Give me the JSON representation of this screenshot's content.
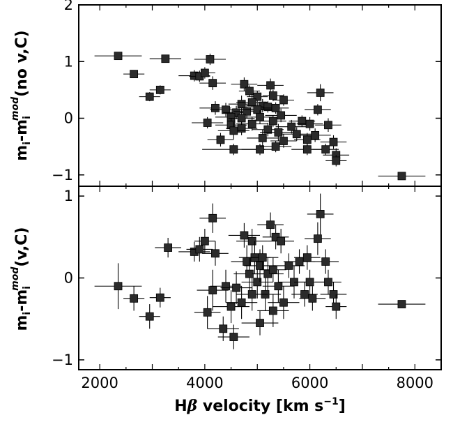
{
  "chart_data": [
    {
      "type": "scatter",
      "ylabel": "m_i-m_i^mod(no v,C)",
      "ylabel_parts": {
        "main": "m",
        "sub1": "i",
        "dash": "-m",
        "sub2": "i",
        "sup": "mod",
        "suffix": "(no v,C)"
      },
      "xlim": [
        1600,
        8500
      ],
      "ylim": [
        -1.2,
        2.0
      ],
      "y_ticks": [
        {
          "value": 2,
          "label": "2"
        },
        {
          "value": 1,
          "label": "1"
        },
        {
          "value": 0,
          "label": "0"
        },
        {
          "value": -1,
          "label": "−1"
        }
      ],
      "points": [
        {
          "x": 2350,
          "y": 1.1,
          "xe": 450,
          "ye": 0
        },
        {
          "x": 2650,
          "y": 0.78,
          "xe": 200,
          "ye": 0
        },
        {
          "x": 3250,
          "y": 1.05,
          "xe": 300,
          "ye": 0
        },
        {
          "x": 4100,
          "y": 1.04,
          "xe": 300,
          "ye": 0.1
        },
        {
          "x": 3800,
          "y": 0.75,
          "xe": 300,
          "ye": 0.1
        },
        {
          "x": 3900,
          "y": 0.74,
          "xe": 200,
          "ye": 0.1
        },
        {
          "x": 4000,
          "y": 0.8,
          "xe": 200,
          "ye": 0.1
        },
        {
          "x": 4150,
          "y": 0.62,
          "xe": 250,
          "ye": 0.12
        },
        {
          "x": 3150,
          "y": 0.5,
          "xe": 200,
          "ye": 0.08
        },
        {
          "x": 2950,
          "y": 0.38,
          "xe": 200,
          "ye": 0.08
        },
        {
          "x": 4750,
          "y": 0.6,
          "xe": 250,
          "ye": 0.12
        },
        {
          "x": 5250,
          "y": 0.58,
          "xe": 250,
          "ye": 0.12
        },
        {
          "x": 4850,
          "y": 0.48,
          "xe": 200,
          "ye": 0.1
        },
        {
          "x": 6200,
          "y": 0.45,
          "xe": 250,
          "ye": 0.15
        },
        {
          "x": 5300,
          "y": 0.4,
          "xe": 200,
          "ye": 0.1
        },
        {
          "x": 5000,
          "y": 0.38,
          "xe": 200,
          "ye": 0.1
        },
        {
          "x": 5500,
          "y": 0.32,
          "xe": 200,
          "ye": 0.1
        },
        {
          "x": 4700,
          "y": 0.25,
          "xe": 250,
          "ye": 0.15
        },
        {
          "x": 4900,
          "y": 0.28,
          "xe": 300,
          "ye": 0.15
        },
        {
          "x": 5100,
          "y": 0.22,
          "xe": 300,
          "ye": 0.12
        },
        {
          "x": 5200,
          "y": 0.2,
          "xe": 200,
          "ye": 0.1
        },
        {
          "x": 4200,
          "y": 0.18,
          "xe": 300,
          "ye": 0.12
        },
        {
          "x": 4400,
          "y": 0.15,
          "xe": 300,
          "ye": 0.12
        },
        {
          "x": 4600,
          "y": 0.1,
          "xe": 250,
          "ye": 0.12
        },
        {
          "x": 4800,
          "y": 0.12,
          "xe": 250,
          "ye": 0.12
        },
        {
          "x": 5000,
          "y": 0.15,
          "xe": 300,
          "ye": 0.12
        },
        {
          "x": 5350,
          "y": 0.18,
          "xe": 250,
          "ye": 0.1
        },
        {
          "x": 6150,
          "y": 0.15,
          "xe": 250,
          "ye": 0.1
        },
        {
          "x": 4500,
          "y": 0.02,
          "xe": 300,
          "ye": 0.12
        },
        {
          "x": 4700,
          "y": 0.0,
          "xe": 250,
          "ye": 0.12
        },
        {
          "x": 5050,
          "y": 0.02,
          "xe": 250,
          "ye": 0.12
        },
        {
          "x": 5450,
          "y": 0.05,
          "xe": 300,
          "ye": 0.12
        },
        {
          "x": 5850,
          "y": -0.05,
          "xe": 250,
          "ye": 0.1
        },
        {
          "x": 4050,
          "y": -0.08,
          "xe": 300,
          "ye": 0.1
        },
        {
          "x": 4500,
          "y": -0.12,
          "xe": 300,
          "ye": 0.12
        },
        {
          "x": 4900,
          "y": -0.1,
          "xe": 300,
          "ye": 0.12
        },
        {
          "x": 5300,
          "y": -0.05,
          "xe": 250,
          "ye": 0.1
        },
        {
          "x": 4700,
          "y": -0.18,
          "xe": 300,
          "ye": 0.12
        },
        {
          "x": 5200,
          "y": -0.2,
          "xe": 300,
          "ye": 0.12
        },
        {
          "x": 5650,
          "y": -0.15,
          "xe": 300,
          "ye": 0.12
        },
        {
          "x": 6000,
          "y": -0.1,
          "xe": 250,
          "ye": 0.12
        },
        {
          "x": 6350,
          "y": -0.12,
          "xe": 250,
          "ye": 0.12
        },
        {
          "x": 4550,
          "y": -0.22,
          "xe": 300,
          "ye": 0.15
        },
        {
          "x": 5400,
          "y": -0.25,
          "xe": 350,
          "ye": 0.15
        },
        {
          "x": 5750,
          "y": -0.28,
          "xe": 300,
          "ye": 0.12
        },
        {
          "x": 6100,
          "y": -0.3,
          "xe": 300,
          "ye": 0.12
        },
        {
          "x": 4300,
          "y": -0.38,
          "xe": 250,
          "ye": 0.12
        },
        {
          "x": 5100,
          "y": -0.35,
          "xe": 300,
          "ye": 0.15
        },
        {
          "x": 5500,
          "y": -0.4,
          "xe": 250,
          "ye": 0.12
        },
        {
          "x": 5950,
          "y": -0.38,
          "xe": 250,
          "ye": 0.12
        },
        {
          "x": 6450,
          "y": -0.42,
          "xe": 250,
          "ye": 0.12
        },
        {
          "x": 4550,
          "y": -0.55,
          "xe": 600,
          "ye": 0.1
        },
        {
          "x": 5050,
          "y": -0.55,
          "xe": 350,
          "ye": 0.1
        },
        {
          "x": 5350,
          "y": -0.5,
          "xe": 300,
          "ye": 0.1
        },
        {
          "x": 5950,
          "y": -0.55,
          "xe": 300,
          "ye": 0.1
        },
        {
          "x": 6300,
          "y": -0.55,
          "xe": 250,
          "ye": 0.1
        },
        {
          "x": 6500,
          "y": -0.65,
          "xe": 250,
          "ye": 0.12
        },
        {
          "x": 6500,
          "y": -0.75,
          "xe": 200,
          "ye": 0.1
        },
        {
          "x": 7750,
          "y": -1.02,
          "xe": 450,
          "ye": 0
        }
      ]
    },
    {
      "type": "scatter",
      "xlabel": "Hβ velocity [km s⁻¹]",
      "xlabel_parts": {
        "main": "H",
        "beta": "β",
        "rest": " velocity [km s",
        "sup": "−1",
        "close": "]"
      },
      "ylabel": "m_i-m_i^mod(v,C)",
      "ylabel_parts": {
        "main": "m",
        "sub1": "i",
        "dash": "-m",
        "sub2": "i",
        "sup": "mod",
        "suffix": "(v,C)"
      },
      "xlim": [
        1600,
        8500
      ],
      "ylim": [
        -1.12,
        1.12
      ],
      "x_ticks": [
        {
          "value": 2000,
          "label": "2000"
        },
        {
          "value": 4000,
          "label": "4000"
        },
        {
          "value": 6000,
          "label": "6000"
        },
        {
          "value": 8000,
          "label": "8000"
        }
      ],
      "y_ticks": [
        {
          "value": 1,
          "label": "1"
        },
        {
          "value": 0,
          "label": "0"
        },
        {
          "value": -1,
          "label": "−1"
        }
      ],
      "points": [
        {
          "x": 2350,
          "y": -0.1,
          "xe": 450,
          "ye": 0.28
        },
        {
          "x": 2650,
          "y": -0.25,
          "xe": 200,
          "ye": 0.15
        },
        {
          "x": 2950,
          "y": -0.47,
          "xe": 200,
          "ye": 0.15
        },
        {
          "x": 3150,
          "y": -0.24,
          "xe": 200,
          "ye": 0.12
        },
        {
          "x": 3300,
          "y": 0.37,
          "xe": 250,
          "ye": 0.12
        },
        {
          "x": 3800,
          "y": 0.32,
          "xe": 300,
          "ye": 0.12
        },
        {
          "x": 3900,
          "y": 0.35,
          "xe": 250,
          "ye": 0.15
        },
        {
          "x": 4000,
          "y": 0.45,
          "xe": 200,
          "ye": 0.15
        },
        {
          "x": 4150,
          "y": 0.73,
          "xe": 250,
          "ye": 0.18
        },
        {
          "x": 4050,
          "y": -0.42,
          "xe": 250,
          "ye": 0.2
        },
        {
          "x": 4150,
          "y": -0.15,
          "xe": 300,
          "ye": 0.25
        },
        {
          "x": 4200,
          "y": 0.3,
          "xe": 250,
          "ye": 0.15
        },
        {
          "x": 4350,
          "y": -0.62,
          "xe": 300,
          "ye": 0.15
        },
        {
          "x": 4400,
          "y": -0.1,
          "xe": 300,
          "ye": 0.2
        },
        {
          "x": 4500,
          "y": -0.35,
          "xe": 350,
          "ye": 0.2
        },
        {
          "x": 4550,
          "y": -0.72,
          "xe": 300,
          "ye": 0.15
        },
        {
          "x": 4600,
          "y": -0.12,
          "xe": 300,
          "ye": 0.2
        },
        {
          "x": 4700,
          "y": -0.3,
          "xe": 300,
          "ye": 0.2
        },
        {
          "x": 4750,
          "y": 0.52,
          "xe": 300,
          "ye": 0.15
        },
        {
          "x": 4800,
          "y": 0.2,
          "xe": 300,
          "ye": 0.2
        },
        {
          "x": 4850,
          "y": 0.05,
          "xe": 300,
          "ye": 0.2
        },
        {
          "x": 4900,
          "y": 0.45,
          "xe": 300,
          "ye": 0.15
        },
        {
          "x": 4950,
          "y": 0.25,
          "xe": 300,
          "ye": 0.2
        },
        {
          "x": 5000,
          "y": -0.05,
          "xe": 300,
          "ye": 0.2
        },
        {
          "x": 5050,
          "y": 0.15,
          "xe": 300,
          "ye": 0.2
        },
        {
          "x": 5050,
          "y": -0.55,
          "xe": 350,
          "ye": 0.15
        },
        {
          "x": 5100,
          "y": 0.25,
          "xe": 300,
          "ye": 0.15
        },
        {
          "x": 5150,
          "y": -0.2,
          "xe": 300,
          "ye": 0.2
        },
        {
          "x": 5200,
          "y": 0.05,
          "xe": 300,
          "ye": 0.2
        },
        {
          "x": 5250,
          "y": 0.65,
          "xe": 250,
          "ye": 0.15
        },
        {
          "x": 5300,
          "y": -0.4,
          "xe": 300,
          "ye": 0.2
        },
        {
          "x": 5350,
          "y": 0.5,
          "xe": 250,
          "ye": 0.15
        },
        {
          "x": 5400,
          "y": -0.1,
          "xe": 300,
          "ye": 0.2
        },
        {
          "x": 5450,
          "y": 0.45,
          "xe": 250,
          "ye": 0.15
        },
        {
          "x": 5500,
          "y": -0.3,
          "xe": 300,
          "ye": 0.2
        },
        {
          "x": 5600,
          "y": 0.15,
          "xe": 300,
          "ye": 0.15
        },
        {
          "x": 5700,
          "y": -0.05,
          "xe": 300,
          "ye": 0.2
        },
        {
          "x": 5800,
          "y": 0.2,
          "xe": 300,
          "ye": 0.15
        },
        {
          "x": 5950,
          "y": 0.25,
          "xe": 250,
          "ye": 0.15
        },
        {
          "x": 6000,
          "y": -0.05,
          "xe": 300,
          "ye": 0.15
        },
        {
          "x": 6050,
          "y": -0.25,
          "xe": 250,
          "ye": 0.15
        },
        {
          "x": 6150,
          "y": 0.48,
          "xe": 250,
          "ye": 0.2
        },
        {
          "x": 6200,
          "y": 0.78,
          "xe": 250,
          "ye": 0.25
        },
        {
          "x": 6300,
          "y": 0.2,
          "xe": 250,
          "ye": 0.15
        },
        {
          "x": 6350,
          "y": -0.05,
          "xe": 250,
          "ye": 0.15
        },
        {
          "x": 6450,
          "y": -0.2,
          "xe": 250,
          "ye": 0.15
        },
        {
          "x": 6500,
          "y": -0.35,
          "xe": 200,
          "ye": 0.15
        },
        {
          "x": 5900,
          "y": -0.2,
          "xe": 250,
          "ye": 0.15
        },
        {
          "x": 5300,
          "y": 0.1,
          "xe": 250,
          "ye": 0.15
        },
        {
          "x": 4900,
          "y": -0.2,
          "xe": 300,
          "ye": 0.2
        },
        {
          "x": 7750,
          "y": -0.32,
          "xe": 450,
          "ye": 0
        }
      ]
    }
  ]
}
